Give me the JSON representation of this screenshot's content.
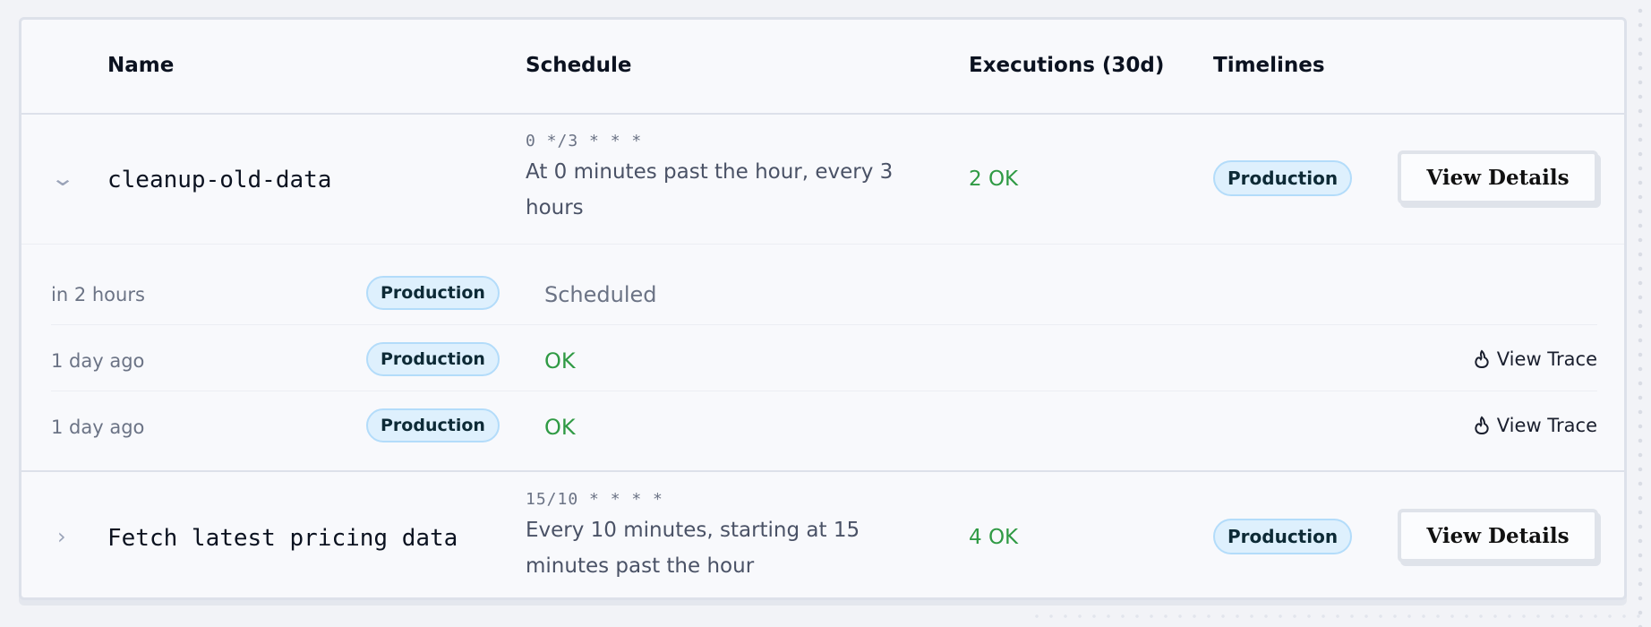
{
  "headers": {
    "name": "Name",
    "schedule": "Schedule",
    "executions": "Executions (30d)",
    "timelines": "Timelines"
  },
  "jobs": [
    {
      "name": "cleanup-old-data",
      "expanded": true,
      "cron": "0 */3 * * *",
      "description": "At 0 minutes past the hour, every 3 hours",
      "executions": "2 OK",
      "timeline": "Production",
      "action": "View Details",
      "runs": [
        {
          "time": "in 2 hours",
          "timeline": "Production",
          "status": "Scheduled",
          "trace": ""
        },
        {
          "time": "1 day ago",
          "timeline": "Production",
          "status": "OK",
          "trace": "View Trace"
        },
        {
          "time": "1 day ago",
          "timeline": "Production",
          "status": "OK",
          "trace": "View Trace"
        }
      ]
    },
    {
      "name": "Fetch latest pricing data",
      "expanded": false,
      "cron": "15/10 * * * *",
      "description": "Every 10 minutes, starting at 15 minutes past the hour",
      "executions": "4 OK",
      "timeline": "Production",
      "action": "View Details"
    }
  ],
  "colors": {
    "ok": "#2f9a44",
    "scheduled": "#6b7385",
    "badge_bg": "#def0fd",
    "badge_border": "#b3dcfa"
  },
  "icons": {
    "expanded": "chevron-down-icon",
    "collapsed": "chevron-right-icon",
    "trace": "flame-icon"
  }
}
